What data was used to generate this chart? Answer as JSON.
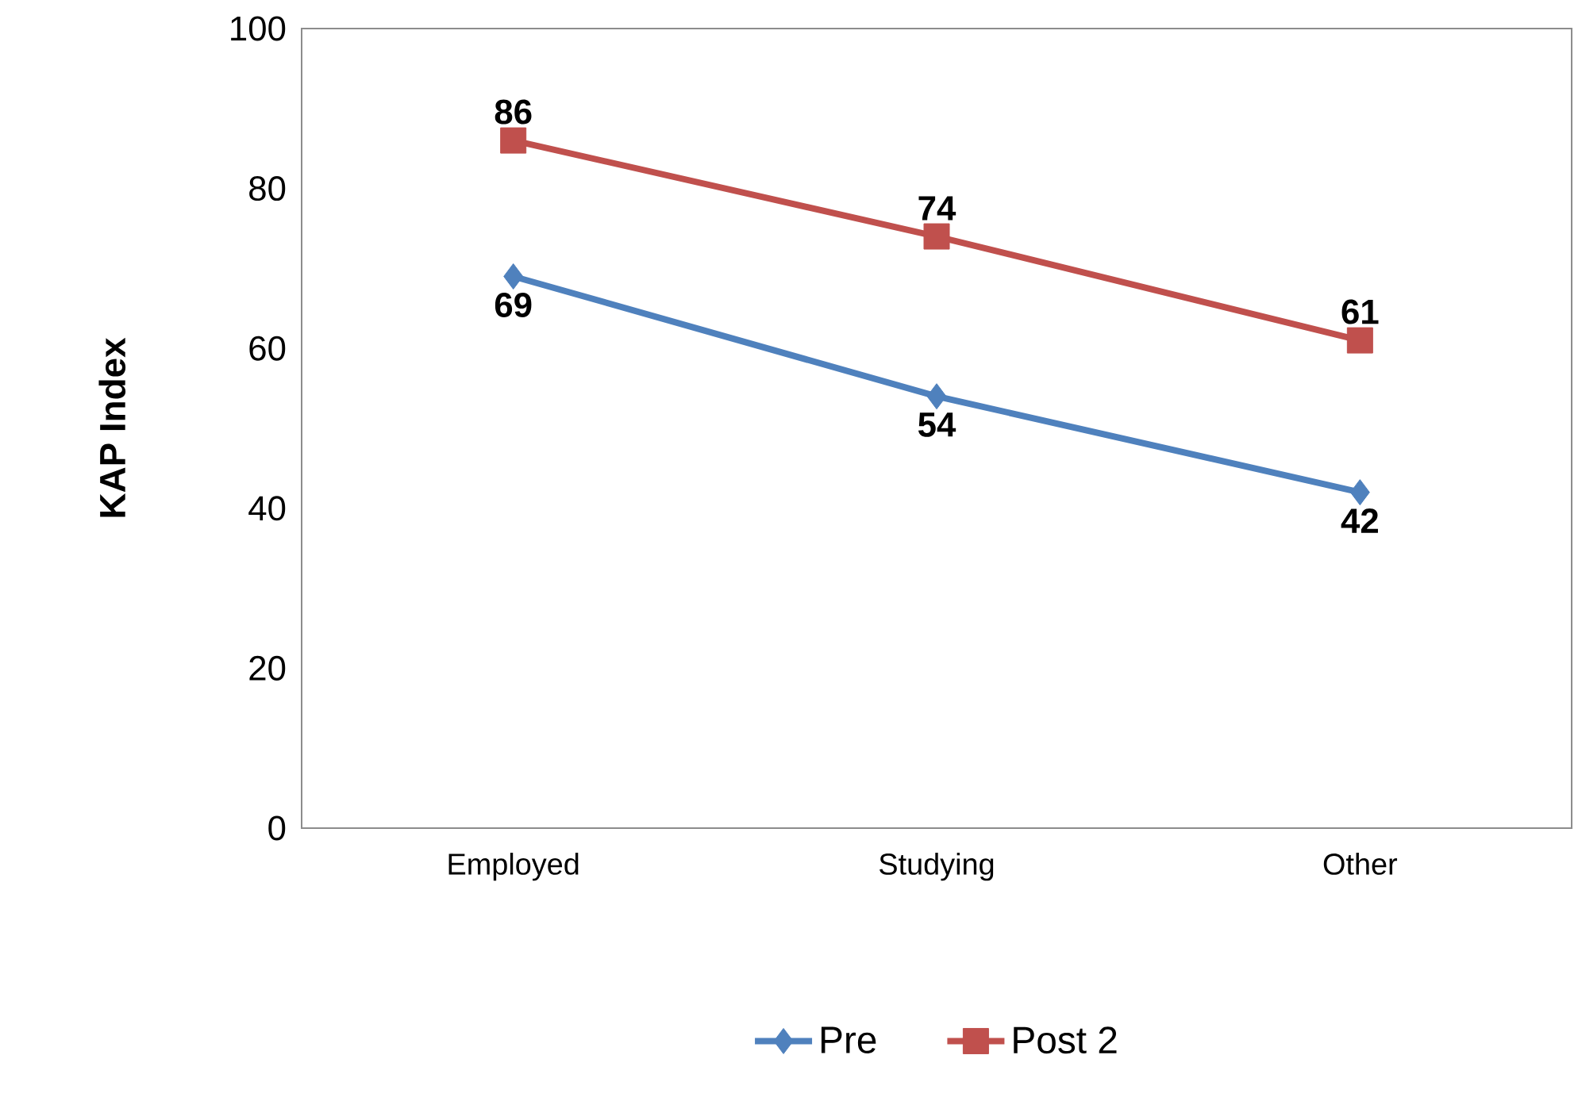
{
  "chart_data": {
    "type": "line",
    "ylabel": "KAP Index",
    "categories": [
      "Employed",
      "Studying",
      "Other"
    ],
    "series": [
      {
        "name": "Pre",
        "color": "#4f81bd",
        "marker": "diamond",
        "values": [
          69,
          54,
          42
        ]
      },
      {
        "name": "Post 2",
        "color": "#c0504d",
        "marker": "square",
        "values": [
          86,
          74,
          61
        ]
      }
    ],
    "ylim": [
      0,
      100
    ],
    "yticks": [
      0,
      20,
      40,
      60,
      80,
      100
    ],
    "data_labels": true,
    "legend": "bottom",
    "grid": false
  }
}
